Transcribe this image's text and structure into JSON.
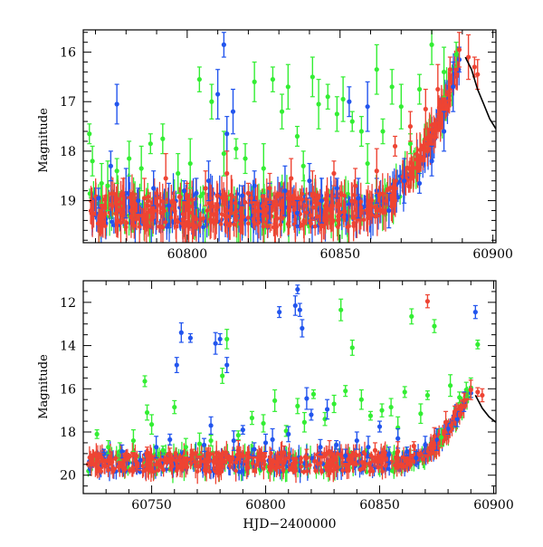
{
  "chart_data": [
    {
      "type": "scatter",
      "title": "",
      "xlabel": "",
      "ylabel": "Magnitude",
      "xlim": [
        60766,
        60901
      ],
      "ylim": [
        19.85,
        15.55
      ],
      "y_inverted": true,
      "xticks": [
        60800,
        60850,
        60900
      ],
      "yticks": [
        16,
        17,
        18,
        19
      ],
      "grid": false,
      "legend": "none",
      "series": [
        {
          "color": "#33ee33",
          "marker": "dot-with-errorbars",
          "points": [
            [
              60768,
              17.65
            ],
            [
              60769,
              18.2
            ],
            [
              60772,
              18.65
            ],
            [
              60774,
              18.7
            ],
            [
              60777,
              18.4
            ],
            [
              60781,
              18.15
            ],
            [
              60785,
              18.35
            ],
            [
              60788,
              17.85
            ],
            [
              60792,
              17.75
            ],
            [
              60797,
              18.45
            ],
            [
              60801,
              18.25
            ],
            [
              60804,
              16.55
            ],
            [
              60808,
              17.0
            ],
            [
              60812,
              18.05
            ],
            [
              60816,
              17.95
            ],
            [
              60819,
              18.15
            ],
            [
              60822,
              16.6
            ],
            [
              60825,
              18.35
            ],
            [
              60828,
              16.55
            ],
            [
              60831,
              17.2
            ],
            [
              60833,
              16.7
            ],
            [
              60836,
              17.7
            ],
            [
              60838,
              18.3
            ],
            [
              60841,
              16.5
            ],
            [
              60843,
              17.05
            ],
            [
              60846,
              16.9
            ],
            [
              60849,
              17.25
            ],
            [
              60851,
              16.95
            ],
            [
              60854,
              17.4
            ],
            [
              60857,
              17.6
            ],
            [
              60859,
              18.25
            ],
            [
              60862,
              16.35
            ],
            [
              60864,
              17.6
            ],
            [
              60867,
              16.7
            ],
            [
              60870,
              17.1
            ],
            [
              60873,
              17.85
            ],
            [
              60876,
              16.75
            ],
            [
              60880,
              15.85
            ],
            [
              60884,
              16.4
            ],
            [
              60888,
              16.05
            ]
          ]
        },
        {
          "color": "#2255ee",
          "marker": "dot-with-errorbars",
          "points": [
            [
              60771,
              18.95
            ],
            [
              60775,
              18.3
            ],
            [
              60777,
              17.05
            ],
            [
              60780,
              18.85
            ],
            [
              60784,
              19.0
            ],
            [
              60789,
              18.75
            ],
            [
              60794,
              19.1
            ],
            [
              60799,
              18.8
            ],
            [
              60803,
              18.85
            ],
            [
              60807,
              18.6
            ],
            [
              60810,
              16.85
            ],
            [
              60812,
              15.85
            ],
            [
              60813,
              17.65
            ],
            [
              60815,
              17.2
            ],
            [
              60818,
              18.9
            ],
            [
              60822,
              18.7
            ],
            [
              60827,
              19.05
            ],
            [
              60832,
              18.8
            ],
            [
              60836,
              19.25
            ],
            [
              60840,
              18.6
            ],
            [
              60844,
              19.0
            ],
            [
              60849,
              18.75
            ],
            [
              60853,
              17.0
            ],
            [
              60856,
              18.95
            ],
            [
              60859,
              17.1
            ],
            [
              60862,
              18.8
            ],
            [
              60866,
              19.2
            ],
            [
              60871,
              18.6
            ],
            [
              60876,
              18.65
            ],
            [
              60880,
              18.2
            ],
            [
              60884,
              17.6
            ],
            [
              60887,
              16.7
            ],
            [
              60889,
              16.15
            ]
          ]
        },
        {
          "color": "#ee4433",
          "marker": "dot-with-errorbars",
          "points": [
            [
              60773,
              19.1
            ],
            [
              60779,
              18.85
            ],
            [
              60786,
              18.95
            ],
            [
              60793,
              18.55
            ],
            [
              60800,
              18.9
            ],
            [
              60806,
              18.75
            ],
            [
              60813,
              18.45
            ],
            [
              60820,
              18.85
            ],
            [
              60827,
              18.75
            ],
            [
              60834,
              18.55
            ],
            [
              60841,
              18.9
            ],
            [
              60848,
              18.45
            ],
            [
              60855,
              18.7
            ],
            [
              60862,
              18.4
            ],
            [
              60868,
              17.9
            ],
            [
              60873,
              17.5
            ],
            [
              60878,
              17.15
            ],
            [
              60882,
              16.75
            ],
            [
              60886,
              16.35
            ],
            [
              60889,
              15.95
            ],
            [
              60892,
              16.1
            ],
            [
              60894,
              16.3
            ],
            [
              60895,
              16.45
            ]
          ]
        }
      ],
      "model_curve": {
        "color": "#000000",
        "points": [
          [
            60891,
            16.1
          ],
          [
            60893,
            16.35
          ],
          [
            60895,
            16.75
          ],
          [
            60897,
            17.05
          ],
          [
            60899,
            17.35
          ],
          [
            60901,
            17.55
          ]
        ]
      }
    },
    {
      "type": "scatter",
      "title": "",
      "xlabel": "HJD−2400000",
      "ylabel": "Magnitude",
      "xlim": [
        60720,
        60901
      ],
      "ylim": [
        20.85,
        11.0
      ],
      "y_inverted": true,
      "xticks": [
        60750,
        60800,
        60850,
        60900
      ],
      "yticks": [
        12,
        14,
        16,
        18,
        20
      ],
      "grid": false,
      "legend": "none",
      "series": [
        {
          "color": "#33ee33",
          "marker": "dot-with-errorbars",
          "points": [
            [
              60726,
              18.1
            ],
            [
              60731,
              18.7
            ],
            [
              60736,
              18.9
            ],
            [
              60742,
              18.4
            ],
            [
              60747,
              15.65
            ],
            [
              60748,
              17.1
            ],
            [
              60750,
              17.65
            ],
            [
              60755,
              18.85
            ],
            [
              60760,
              16.85
            ],
            [
              60765,
              18.7
            ],
            [
              60771,
              18.55
            ],
            [
              60776,
              18.4
            ],
            [
              60781,
              15.4
            ],
            [
              60783,
              13.7
            ],
            [
              60788,
              18.15
            ],
            [
              60794,
              17.35
            ],
            [
              60799,
              17.6
            ],
            [
              60804,
              16.55
            ],
            [
              60809,
              17.95
            ],
            [
              60814,
              16.8
            ],
            [
              60817,
              17.55
            ],
            [
              60821,
              16.25
            ],
            [
              60826,
              17.4
            ],
            [
              60830,
              16.7
            ],
            [
              60833,
              12.35
            ],
            [
              60835,
              16.1
            ],
            [
              60838,
              14.1
            ],
            [
              60842,
              16.5
            ],
            [
              60846,
              17.25
            ],
            [
              60851,
              17.0
            ],
            [
              60855,
              16.85
            ],
            [
              60858,
              17.8
            ],
            [
              60861,
              16.15
            ],
            [
              60864,
              12.65
            ],
            [
              60868,
              17.15
            ],
            [
              60871,
              16.3
            ],
            [
              60874,
              13.1
            ],
            [
              60877,
              18.25
            ],
            [
              60881,
              15.85
            ],
            [
              60885,
              16.4
            ],
            [
              60888,
              16.05
            ],
            [
              60890,
              15.95
            ],
            [
              60893,
              13.95
            ]
          ]
        },
        {
          "color": "#2255ee",
          "marker": "dot-with-errorbars",
          "points": [
            [
              60729,
              19.0
            ],
            [
              60737,
              18.9
            ],
            [
              60745,
              19.3
            ],
            [
              60752,
              18.7
            ],
            [
              60758,
              18.35
            ],
            [
              60761,
              14.9
            ],
            [
              60763,
              13.4
            ],
            [
              60767,
              13.65
            ],
            [
              60773,
              18.6
            ],
            [
              60776,
              17.7
            ],
            [
              60778,
              13.9
            ],
            [
              60780,
              13.7
            ],
            [
              60783,
              14.9
            ],
            [
              60786,
              18.4
            ],
            [
              60790,
              17.9
            ],
            [
              60795,
              18.8
            ],
            [
              60800,
              18.5
            ],
            [
              60803,
              18.35
            ],
            [
              60806,
              12.45
            ],
            [
              60810,
              18.1
            ],
            [
              60813,
              12.15
            ],
            [
              60814,
              11.4
            ],
            [
              60815,
              12.35
            ],
            [
              60816,
              13.2
            ],
            [
              60818,
              16.45
            ],
            [
              60820,
              17.2
            ],
            [
              60824,
              18.7
            ],
            [
              60827,
              16.95
            ],
            [
              60831,
              18.6
            ],
            [
              60835,
              19.1
            ],
            [
              60840,
              18.4
            ],
            [
              60845,
              18.7
            ],
            [
              60850,
              17.75
            ],
            [
              60854,
              19.05
            ],
            [
              60858,
              18.3
            ],
            [
              60862,
              18.9
            ],
            [
              60866,
              19.2
            ],
            [
              60870,
              18.6
            ],
            [
              60875,
              18.35
            ],
            [
              60880,
              17.85
            ],
            [
              60884,
              17.4
            ],
            [
              60887,
              16.6
            ],
            [
              60890,
              16.2
            ],
            [
              60892,
              12.45
            ]
          ]
        },
        {
          "color": "#ee4433",
          "marker": "dot-with-errorbars",
          "points": [
            [
              60728,
              19.2
            ],
            [
              60738,
              19.3
            ],
            [
              60748,
              19.1
            ],
            [
              60758,
              19.25
            ],
            [
              60768,
              19.05
            ],
            [
              60778,
              19.35
            ],
            [
              60788,
              18.85
            ],
            [
              60798,
              19.15
            ],
            [
              60808,
              18.95
            ],
            [
              60818,
              19.2
            ],
            [
              60828,
              18.9
            ],
            [
              60838,
              19.15
            ],
            [
              60848,
              18.85
            ],
            [
              60858,
              18.9
            ],
            [
              60865,
              18.65
            ],
            [
              60871,
              11.95
            ],
            [
              60874,
              18.2
            ],
            [
              60879,
              17.55
            ],
            [
              60883,
              17.05
            ],
            [
              60887,
              16.55
            ],
            [
              60890,
              16.05
            ],
            [
              60893,
              16.15
            ],
            [
              60895,
              16.3
            ]
          ]
        }
      ],
      "model_curve": {
        "color": "#000000",
        "points": [
          [
            60892,
            16.3
          ],
          [
            60895,
            16.9
          ],
          [
            60898,
            17.3
          ],
          [
            60901,
            17.55
          ]
        ]
      }
    }
  ]
}
